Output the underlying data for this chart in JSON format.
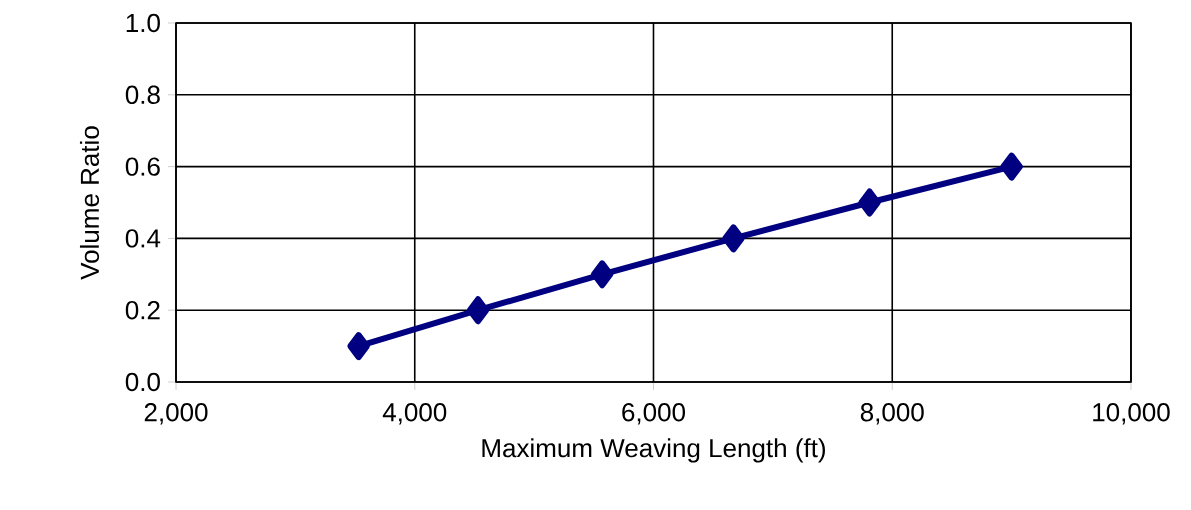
{
  "chart_data": {
    "type": "line",
    "xlabel": "Maximum Weaving Length (ft)",
    "ylabel": "Volume Ratio",
    "series": [
      {
        "color": "#000080",
        "x": [
          3530,
          4530,
          5570,
          6670,
          7810,
          9000
        ],
        "values": [
          0.1,
          0.2,
          0.3,
          0.4,
          0.5,
          0.6
        ]
      }
    ],
    "xlim": [
      2000,
      10000
    ],
    "ylim": [
      0,
      1
    ],
    "xticks": [
      {
        "value": 2000,
        "label": "2,000"
      },
      {
        "value": 4000,
        "label": "4,000"
      },
      {
        "value": 6000,
        "label": "6,000"
      },
      {
        "value": 8000,
        "label": "8,000"
      },
      {
        "value": 10000,
        "label": "10,000"
      }
    ],
    "yticks": [
      {
        "value": 0,
        "label": "0.0"
      },
      {
        "value": 0.2,
        "label": "0.2"
      },
      {
        "value": 0.4,
        "label": "0.4"
      },
      {
        "value": 0.6,
        "label": "0.6"
      },
      {
        "value": 0.8,
        "label": "0.8"
      },
      {
        "value": 1,
        "label": "1.0"
      }
    ],
    "grid": true,
    "marker": "diamond",
    "line_style": "solid"
  }
}
